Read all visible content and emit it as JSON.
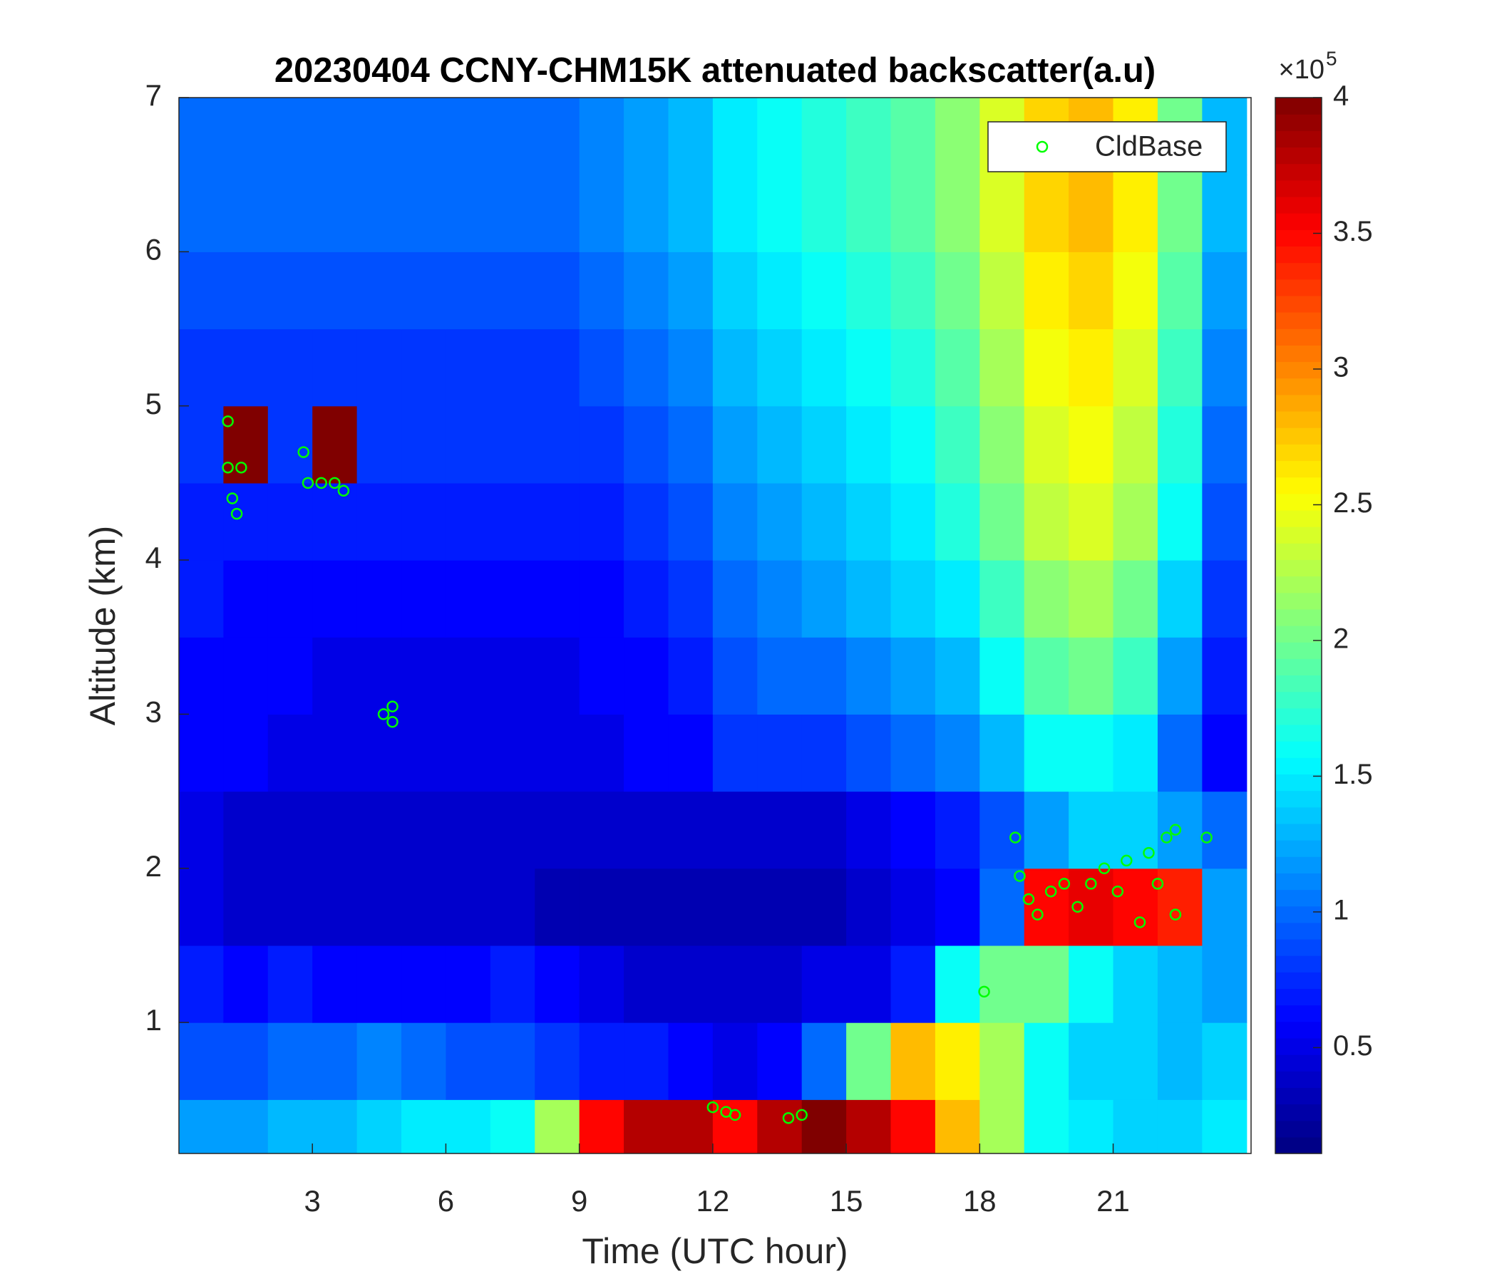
{
  "chart_data": {
    "type": "heatmap",
    "title": "20230404 CCNY-CHM15K attenuated backscatter(a.u)",
    "x_label": "Time (UTC hour)",
    "y_label": "Altitude (km)",
    "xlim": [
      0,
      24.1
    ],
    "xticks": [
      3,
      6,
      9,
      12,
      15,
      18,
      21
    ],
    "ylim": [
      0.15,
      7
    ],
    "yticks": [
      1,
      2,
      3,
      4,
      5,
      6,
      7
    ],
    "x": [
      0.5,
      1.5,
      2.5,
      3.5,
      4.5,
      5.5,
      6.5,
      7.5,
      8.5,
      9.5,
      10.5,
      11.5,
      12.5,
      13.5,
      14.5,
      15.5,
      16.5,
      17.5,
      18.5,
      19.5,
      20.5,
      21.5,
      22.5,
      23.5
    ],
    "y": [
      0.25,
      0.75,
      1.25,
      1.75,
      2.25,
      2.75,
      3.25,
      3.75,
      4.25,
      4.75,
      5.25,
      5.75,
      6.25,
      6.75
    ],
    "z": [
      [
        1.2,
        1.2,
        1.3,
        1.3,
        1.4,
        1.5,
        1.5,
        1.6,
        2.2,
        3.5,
        3.8,
        3.8,
        3.5,
        3.8,
        4,
        3.8,
        3.5,
        2.8,
        2.2,
        1.6,
        1.5,
        1.4,
        1.4,
        1.5
      ],
      [
        0.9,
        0.9,
        1.0,
        1.0,
        1.1,
        1.0,
        0.9,
        0.9,
        0.8,
        0.7,
        0.7,
        0.6,
        0.5,
        0.6,
        1.0,
        2.0,
        2.8,
        2.6,
        2.2,
        1.6,
        1.4,
        1.4,
        1.3,
        1.4
      ],
      [
        0.7,
        0.6,
        0.7,
        0.6,
        0.6,
        0.6,
        0.6,
        0.7,
        0.6,
        0.5,
        0.4,
        0.4,
        0.4,
        0.4,
        0.5,
        0.5,
        0.7,
        1.6,
        2.0,
        2.0,
        1.6,
        1.4,
        1.3,
        1.2
      ],
      [
        0.5,
        0.4,
        0.4,
        0.4,
        0.4,
        0.4,
        0.4,
        0.4,
        0.3,
        0.3,
        0.3,
        0.3,
        0.3,
        0.3,
        0.3,
        0.4,
        0.5,
        0.6,
        1.0,
        3.5,
        3.6,
        3.5,
        3.4,
        1.2
      ],
      [
        0.5,
        0.4,
        0.4,
        0.4,
        0.4,
        0.4,
        0.4,
        0.4,
        0.4,
        0.4,
        0.4,
        0.4,
        0.4,
        0.4,
        0.4,
        0.5,
        0.6,
        0.7,
        0.9,
        1.2,
        1.4,
        1.4,
        1.2,
        1.0
      ],
      [
        0.6,
        0.6,
        0.5,
        0.5,
        0.5,
        0.5,
        0.5,
        0.5,
        0.5,
        0.5,
        0.6,
        0.6,
        0.8,
        0.8,
        0.8,
        0.9,
        1.0,
        1.1,
        1.3,
        1.6,
        1.6,
        1.5,
        1.0,
        0.6
      ],
      [
        0.6,
        0.6,
        0.6,
        0.5,
        0.5,
        0.5,
        0.5,
        0.5,
        0.5,
        0.6,
        0.6,
        0.7,
        0.9,
        1.0,
        1.0,
        1.1,
        1.2,
        1.3,
        1.6,
        1.9,
        2.0,
        1.8,
        1.2,
        0.7
      ],
      [
        0.7,
        0.6,
        0.6,
        0.6,
        0.6,
        0.6,
        0.6,
        0.6,
        0.6,
        0.6,
        0.7,
        0.8,
        1.0,
        1.1,
        1.2,
        1.3,
        1.4,
        1.5,
        1.8,
        2.1,
        2.2,
        2.0,
        1.4,
        0.8
      ],
      [
        0.7,
        0.7,
        0.7,
        0.7,
        0.7,
        0.7,
        0.7,
        0.7,
        0.7,
        0.7,
        0.8,
        0.9,
        1.1,
        1.2,
        1.3,
        1.4,
        1.5,
        1.7,
        2.0,
        2.3,
        2.4,
        2.2,
        1.6,
        0.9
      ],
      [
        0.8,
        4.0,
        0.8,
        4.0,
        0.8,
        0.8,
        0.8,
        0.8,
        0.8,
        0.8,
        0.9,
        1.0,
        1.2,
        1.3,
        1.4,
        1.5,
        1.6,
        1.8,
        2.1,
        2.4,
        2.5,
        2.3,
        1.7,
        1.0
      ],
      [
        0.8,
        0.8,
        0.8,
        0.8,
        0.8,
        0.8,
        0.8,
        0.8,
        0.8,
        0.9,
        1.0,
        1.1,
        1.3,
        1.4,
        1.5,
        1.6,
        1.7,
        1.9,
        2.2,
        2.5,
        2.6,
        2.4,
        1.8,
        1.1
      ],
      [
        0.9,
        0.9,
        0.9,
        0.9,
        0.9,
        0.9,
        0.9,
        0.9,
        0.9,
        1.0,
        1.1,
        1.2,
        1.4,
        1.5,
        1.6,
        1.7,
        1.8,
        2.0,
        2.3,
        2.6,
        2.7,
        2.5,
        1.9,
        1.2
      ],
      [
        1.0,
        1.0,
        1.0,
        1.0,
        1.0,
        1.0,
        1.0,
        1.0,
        1.0,
        1.1,
        1.2,
        1.3,
        1.5,
        1.6,
        1.7,
        1.8,
        1.9,
        2.1,
        2.4,
        2.7,
        2.8,
        2.6,
        2.0,
        1.3
      ],
      [
        1.0,
        1.0,
        1.0,
        1.0,
        1.0,
        1.0,
        1.0,
        1.0,
        1.0,
        1.1,
        1.2,
        1.3,
        1.5,
        1.6,
        1.7,
        1.8,
        1.9,
        2.1,
        2.4,
        2.7,
        2.8,
        2.6,
        2.0,
        1.3
      ]
    ],
    "clim": [
      0.11,
      4
    ],
    "cticks": [
      0.5,
      1,
      1.5,
      2,
      2.5,
      3,
      3.5,
      4
    ],
    "colorbar_multiplier": "×10",
    "colorbar_exponent": "5",
    "colormap": "jet",
    "legend_position": "top-right",
    "series": [
      {
        "name": "CldBase",
        "type": "scatter",
        "color": "#00ff00",
        "x": [
          1.1,
          1.1,
          1.2,
          1.3,
          1.4,
          2.8,
          2.9,
          3.2,
          3.5,
          3.7,
          4.6,
          4.8,
          4.8,
          12.0,
          12.3,
          12.5,
          13.7,
          14.0,
          18.1,
          18.8,
          18.9,
          19.1,
          19.3,
          19.6,
          19.9,
          20.2,
          20.5,
          20.8,
          21.1,
          21.3,
          21.6,
          21.8,
          22.0,
          22.2,
          22.4,
          22.4,
          23.1
        ],
        "values": [
          4.9,
          4.6,
          4.4,
          4.3,
          4.6,
          4.7,
          4.5,
          4.5,
          4.5,
          4.45,
          3.0,
          3.05,
          2.95,
          0.45,
          0.42,
          0.4,
          0.38,
          0.4,
          1.2,
          2.2,
          1.95,
          1.8,
          1.7,
          1.85,
          1.9,
          1.75,
          1.9,
          2.0,
          1.85,
          2.05,
          1.65,
          2.1,
          1.9,
          2.2,
          1.7,
          2.25,
          2.2
        ]
      }
    ]
  }
}
